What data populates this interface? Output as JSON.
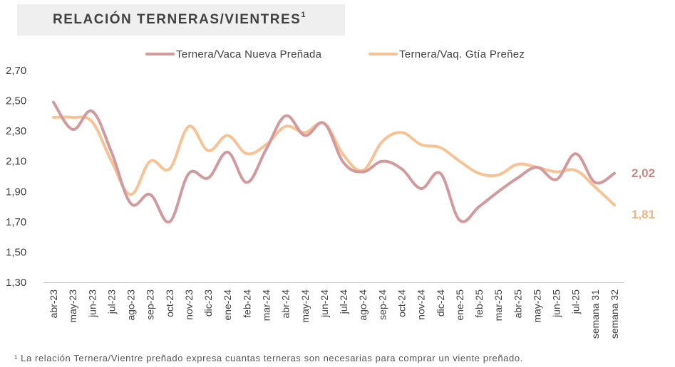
{
  "chart_data": {
    "type": "line",
    "title": "RELACIÓN TERNERAS/VIENTRES",
    "title_superscript": "1",
    "footnote_mark": "¹",
    "footnote": "La relación Ternera/Vientre preñado expresa cuantas terneras son necesarias para comprar un viente preñado.",
    "categories": [
      "abr-23",
      "may-23",
      "jun-23",
      "jul-23",
      "ago-23",
      "sep-23",
      "oct-23",
      "nov-23",
      "dic-23",
      "ene-24",
      "feb-24",
      "mar-24",
      "abr-24",
      "may-24",
      "jun-24",
      "jul-24",
      "ago-24",
      "sep-24",
      "oct-24",
      "nov-24",
      "dic-24",
      "ene-25",
      "feb-25",
      "mar-25",
      "abr-25",
      "may-25",
      "jun-25",
      "jul-25",
      "semana 31",
      "semana 32"
    ],
    "ylim": [
      1.3,
      2.7
    ],
    "yticks": [
      "1,30",
      "1,50",
      "1,70",
      "1,90",
      "2,10",
      "2,30",
      "2,50",
      "2,70"
    ],
    "legend_position": "top",
    "series": [
      {
        "name": "Ternera/Vaca Nueva Preñada",
        "color": "#d29a9d",
        "label_color": "#c9878a",
        "end_label": "2,02",
        "values": [
          2.49,
          2.31,
          2.43,
          2.16,
          1.82,
          1.88,
          1.7,
          2.02,
          1.99,
          2.16,
          1.96,
          2.18,
          2.4,
          2.27,
          2.35,
          2.09,
          2.03,
          2.1,
          2.05,
          1.92,
          2.02,
          1.71,
          1.8,
          1.9,
          1.99,
          2.06,
          1.98,
          2.15,
          1.96,
          2.02
        ]
      },
      {
        "name": "Ternera/Vaq. Gtía Preñez",
        "color": "#f7c395",
        "label_color": "#f2b482",
        "end_label": "1,81",
        "values": [
          2.39,
          2.39,
          2.36,
          2.1,
          1.88,
          2.1,
          2.05,
          2.33,
          2.17,
          2.27,
          2.15,
          2.21,
          2.33,
          2.29,
          2.35,
          2.14,
          2.04,
          2.23,
          2.29,
          2.21,
          2.19,
          2.1,
          2.02,
          2.01,
          2.08,
          2.06,
          2.03,
          2.04,
          1.93,
          1.81
        ]
      }
    ]
  }
}
